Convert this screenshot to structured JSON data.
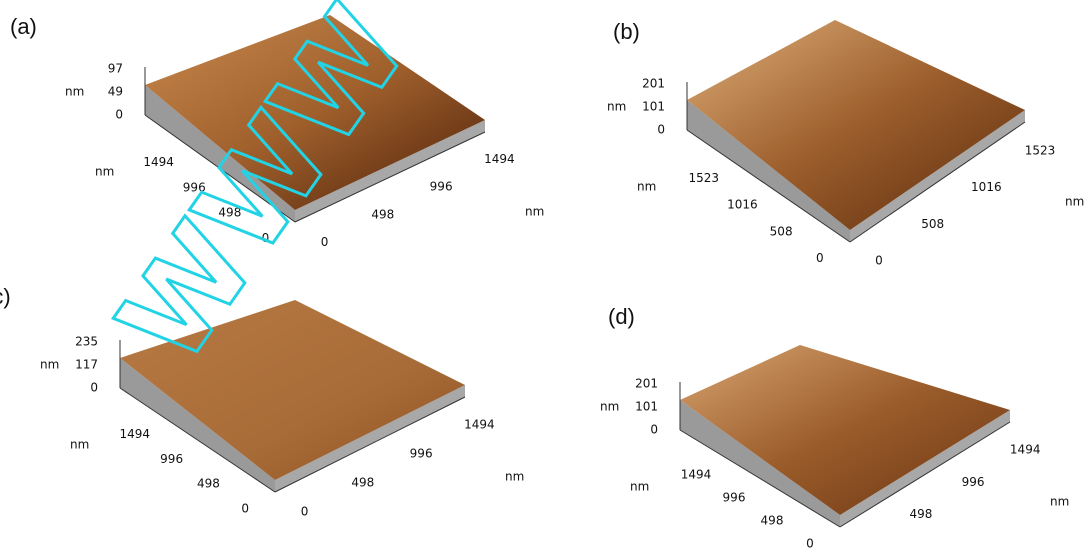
{
  "panels": [
    {
      "label": "(a)",
      "z_unit": "nm",
      "z_ticks": [
        97,
        49,
        0
      ],
      "left_unit": "nm",
      "left_ticks": [
        1494,
        996,
        498,
        0
      ],
      "right_unit": "nm",
      "right_ticks": [
        0,
        498,
        996,
        1494
      ]
    },
    {
      "label": "(b)",
      "z_unit": "nm",
      "z_ticks": [
        201,
        101,
        0
      ],
      "left_unit": "nm",
      "left_ticks": [
        1523,
        1016,
        508,
        0
      ],
      "right_unit": "nm",
      "right_ticks": [
        0,
        508,
        1016,
        1523
      ]
    },
    {
      "label": "(c)",
      "z_unit": "nm",
      "z_ticks": [
        235,
        117,
        0
      ],
      "left_unit": "nm",
      "left_ticks": [
        1494,
        996,
        498,
        0
      ],
      "right_unit": "nm",
      "right_ticks": [
        0,
        498,
        996,
        1494
      ]
    },
    {
      "label": "(d)",
      "z_unit": "nm",
      "z_ticks": [
        201,
        101,
        0
      ],
      "left_unit": "nm",
      "left_ticks": [
        1494,
        996,
        498,
        0
      ],
      "right_unit": "nm",
      "right_ticks": [
        498,
        996,
        1494
      ]
    }
  ],
  "watermark": "WWW"
}
